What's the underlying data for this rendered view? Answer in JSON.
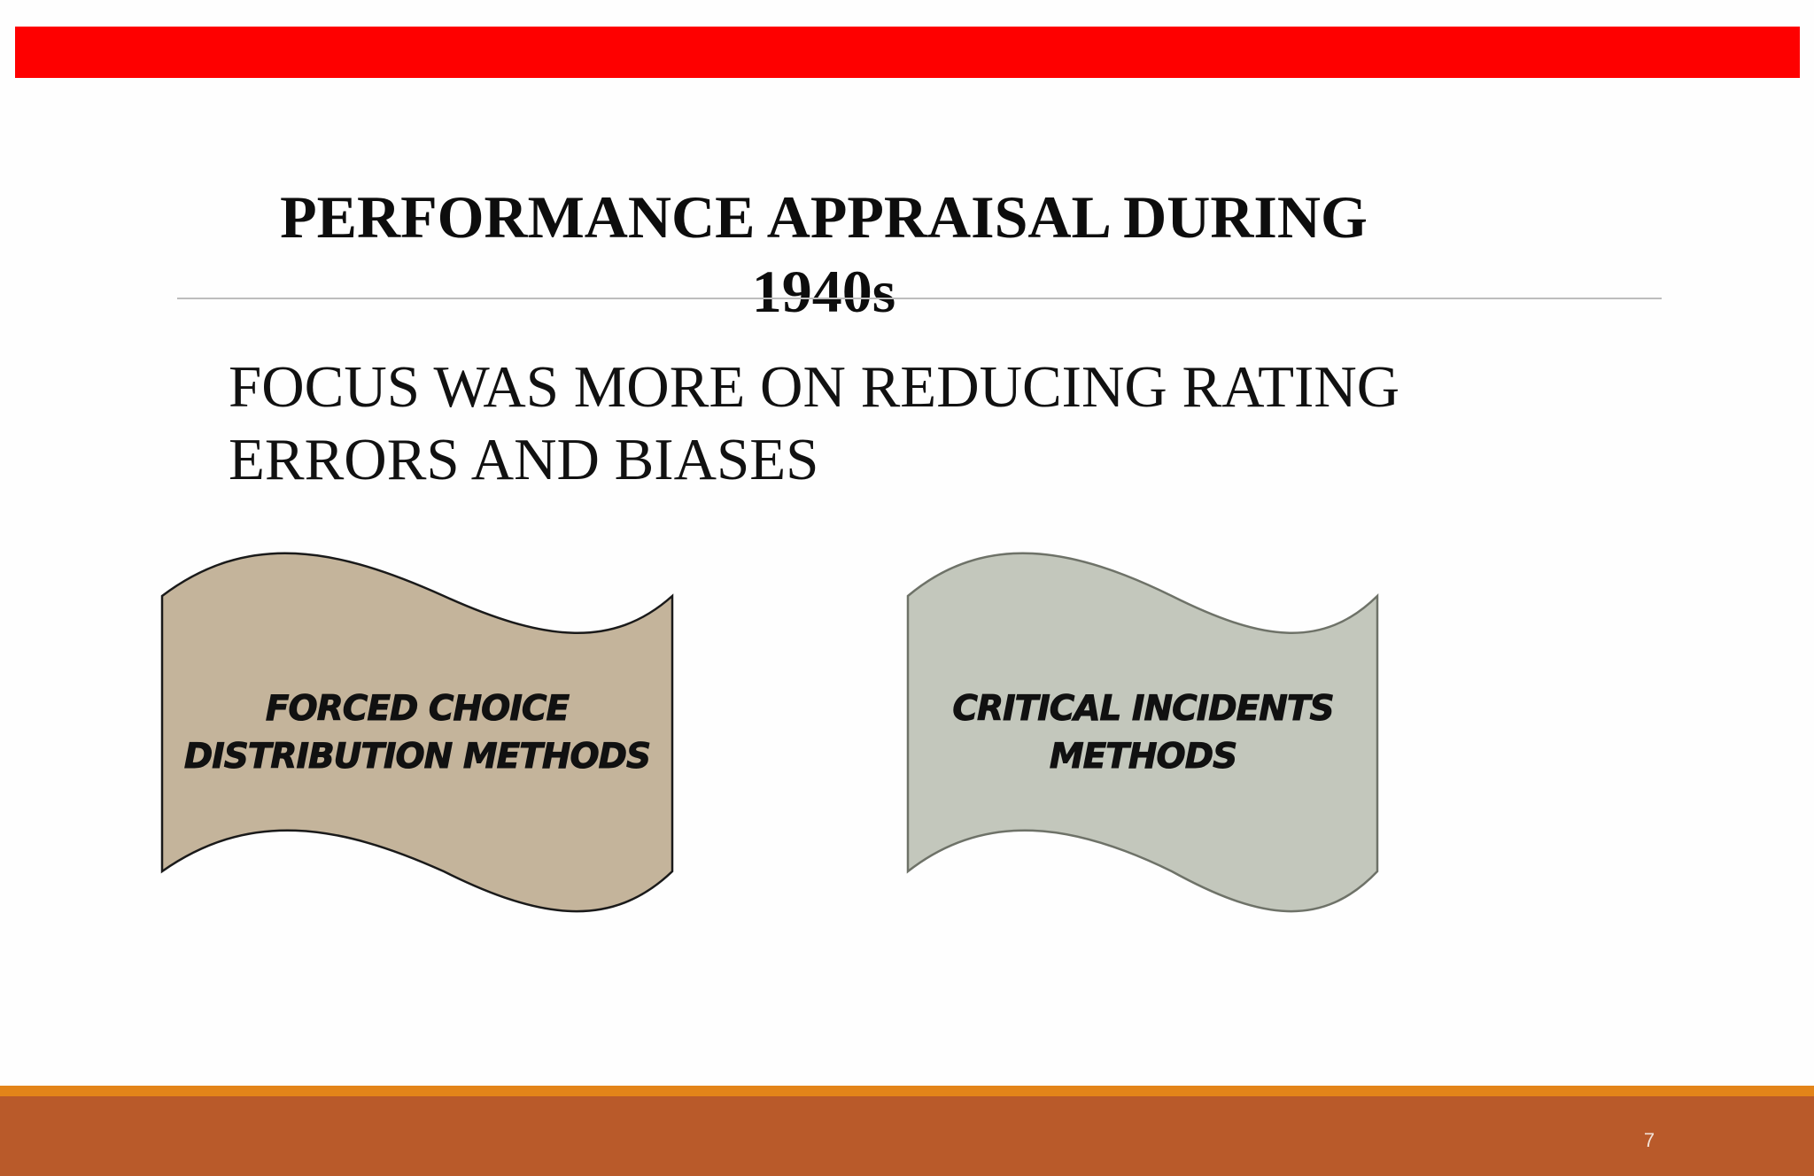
{
  "slide": {
    "title_lines": [
      "PERFORMANCE APPRAISAL DURING",
      "1940s"
    ],
    "subtitle_lines": [
      "FOCUS WAS MORE ON REDUCING RATING",
      "ERRORS AND BIASES"
    ],
    "page_number": "7"
  },
  "shapes": [
    {
      "label_lines": [
        "FORCED CHOICE",
        "DISTRIBUTION METHODS"
      ],
      "fill": "#c4b49b",
      "stroke": "#1a1a1a"
    },
    {
      "label_lines": [
        "CRITICAL INCIDENTS",
        "METHODS"
      ],
      "fill": "#c3c7bc",
      "stroke": "#6e7268"
    }
  ],
  "colors": {
    "top_bar": "#fe0000",
    "bottom_strip": "#e38419",
    "bottom_bar": "#b95a2a",
    "background": "#fefefe"
  }
}
